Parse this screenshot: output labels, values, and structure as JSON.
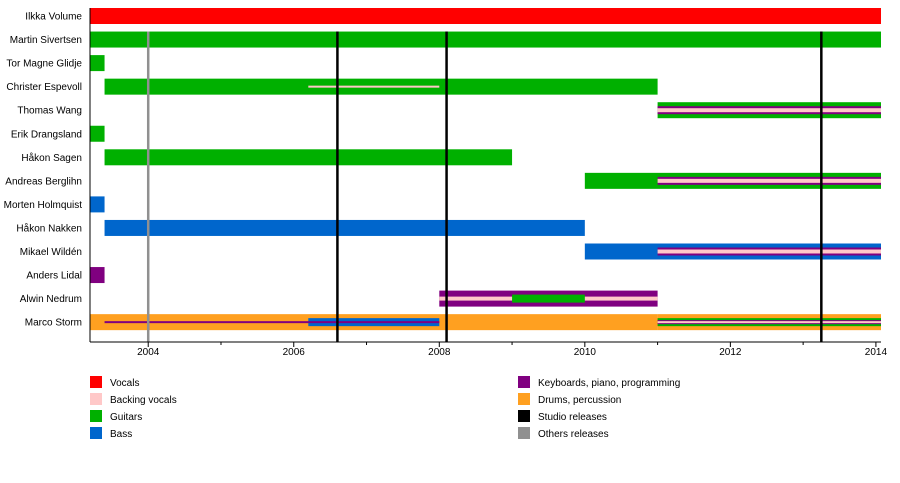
{
  "chart_data": {
    "type": "timeline",
    "xlim": [
      2003.2,
      2014.07
    ],
    "x_ticks": [
      2004,
      2006,
      2008,
      2010,
      2012,
      2014
    ],
    "grid": false,
    "legend_placement": "bottom",
    "roles": {
      "vocals": {
        "label": "Vocals",
        "color": "#ff0000"
      },
      "backing": {
        "label": "Backing vocals",
        "color": "#ffc8c8"
      },
      "guitars": {
        "label": "Guitars",
        "color": "#00b000"
      },
      "bass": {
        "label": "Bass",
        "color": "#0066cc"
      },
      "keys": {
        "label": "Keyboards, piano, programming",
        "color": "#800080"
      },
      "drums": {
        "label": "Drums, percussion",
        "color": "#ffa020"
      },
      "studio": {
        "label": "Studio releases",
        "color": "#000000"
      },
      "other": {
        "label": "Others releases",
        "color": "#909090"
      }
    },
    "legend_left": [
      "vocals",
      "backing",
      "guitars",
      "bass"
    ],
    "legend_right": [
      "keys",
      "drums",
      "studio",
      "other"
    ],
    "studio_releases": [
      2006.6,
      2008.1,
      2013.25
    ],
    "other_releases": [
      2004.0
    ],
    "members": [
      {
        "name": "Ilkka Volume",
        "bars": [
          {
            "role": "vocals",
            "start": 2003.2,
            "end": 2014.07,
            "layer": 0
          }
        ]
      },
      {
        "name": "Martin Sivertsen",
        "bars": [
          {
            "role": "guitars",
            "start": 2003.2,
            "end": 2014.07,
            "layer": 0
          }
        ]
      },
      {
        "name": "Tor Magne Glidje",
        "bars": [
          {
            "role": "guitars",
            "start": 2003.2,
            "end": 2003.4,
            "layer": 0
          }
        ]
      },
      {
        "name": "Christer Espevoll",
        "bars": [
          {
            "role": "guitars",
            "start": 2003.4,
            "end": 2011.0,
            "layer": 0
          },
          {
            "role": "backing",
            "start": 2006.2,
            "end": 2008.0,
            "layer": 3
          }
        ]
      },
      {
        "name": "Thomas Wang",
        "bars": [
          {
            "role": "guitars",
            "start": 2011.0,
            "end": 2014.07,
            "layer": 0
          },
          {
            "role": "keys",
            "start": 2011.0,
            "end": 2014.07,
            "layer": 1
          },
          {
            "role": "backing",
            "start": 2011.0,
            "end": 2014.07,
            "layer": 2
          }
        ]
      },
      {
        "name": "Erik Drangsland",
        "bars": [
          {
            "role": "guitars",
            "start": 2003.2,
            "end": 2003.4,
            "layer": 0
          }
        ]
      },
      {
        "name": "Håkon Sagen",
        "bars": [
          {
            "role": "guitars",
            "start": 2003.4,
            "end": 2009.0,
            "layer": 0
          }
        ]
      },
      {
        "name": "Andreas Berglihn",
        "bars": [
          {
            "role": "guitars",
            "start": 2010.0,
            "end": 2014.07,
            "layer": 0
          },
          {
            "role": "keys",
            "start": 2011.0,
            "end": 2014.07,
            "layer": 1
          },
          {
            "role": "backing",
            "start": 2011.0,
            "end": 2014.07,
            "layer": 2
          }
        ]
      },
      {
        "name": "Morten Holmquist",
        "bars": [
          {
            "role": "bass",
            "start": 2003.2,
            "end": 2003.4,
            "layer": 0
          }
        ]
      },
      {
        "name": "Håkon Nakken",
        "bars": [
          {
            "role": "bass",
            "start": 2003.4,
            "end": 2010.0,
            "layer": 0
          }
        ]
      },
      {
        "name": "Mikael Wildén",
        "bars": [
          {
            "role": "bass",
            "start": 2010.0,
            "end": 2014.07,
            "layer": 0
          },
          {
            "role": "keys",
            "start": 2011.0,
            "end": 2014.07,
            "layer": 1
          },
          {
            "role": "backing",
            "start": 2011.0,
            "end": 2014.07,
            "layer": 2
          }
        ]
      },
      {
        "name": "Anders Lidal",
        "bars": [
          {
            "role": "keys",
            "start": 2003.2,
            "end": 2003.4,
            "layer": 0
          }
        ]
      },
      {
        "name": "Alwin Nedrum",
        "bars": [
          {
            "role": "keys",
            "start": 2008.0,
            "end": 2011.0,
            "layer": 0
          },
          {
            "role": "backing",
            "start": 2008.0,
            "end": 2011.0,
            "layer": 2
          },
          {
            "role": "guitars",
            "start": 2009.0,
            "end": 2010.0,
            "layer": 1
          }
        ]
      },
      {
        "name": "Marco Storm",
        "bars": [
          {
            "role": "drums",
            "start": 2003.2,
            "end": 2011.0,
            "layer": 0
          },
          {
            "role": "bass",
            "start": 2006.2,
            "end": 2008.0,
            "layer": 1
          },
          {
            "role": "keys",
            "start": 2003.4,
            "end": 2008.0,
            "layer": 3
          },
          {
            "role": "drums",
            "start": 2011.0,
            "end": 2014.07,
            "layer": 0
          },
          {
            "role": "guitars",
            "start": 2011.0,
            "end": 2014.07,
            "layer": 1
          },
          {
            "role": "keys",
            "start": 2011.0,
            "end": 2014.07,
            "layer": 2
          },
          {
            "role": "backing",
            "start": 2011.0,
            "end": 2014.07,
            "layer": 3
          }
        ]
      }
    ]
  }
}
